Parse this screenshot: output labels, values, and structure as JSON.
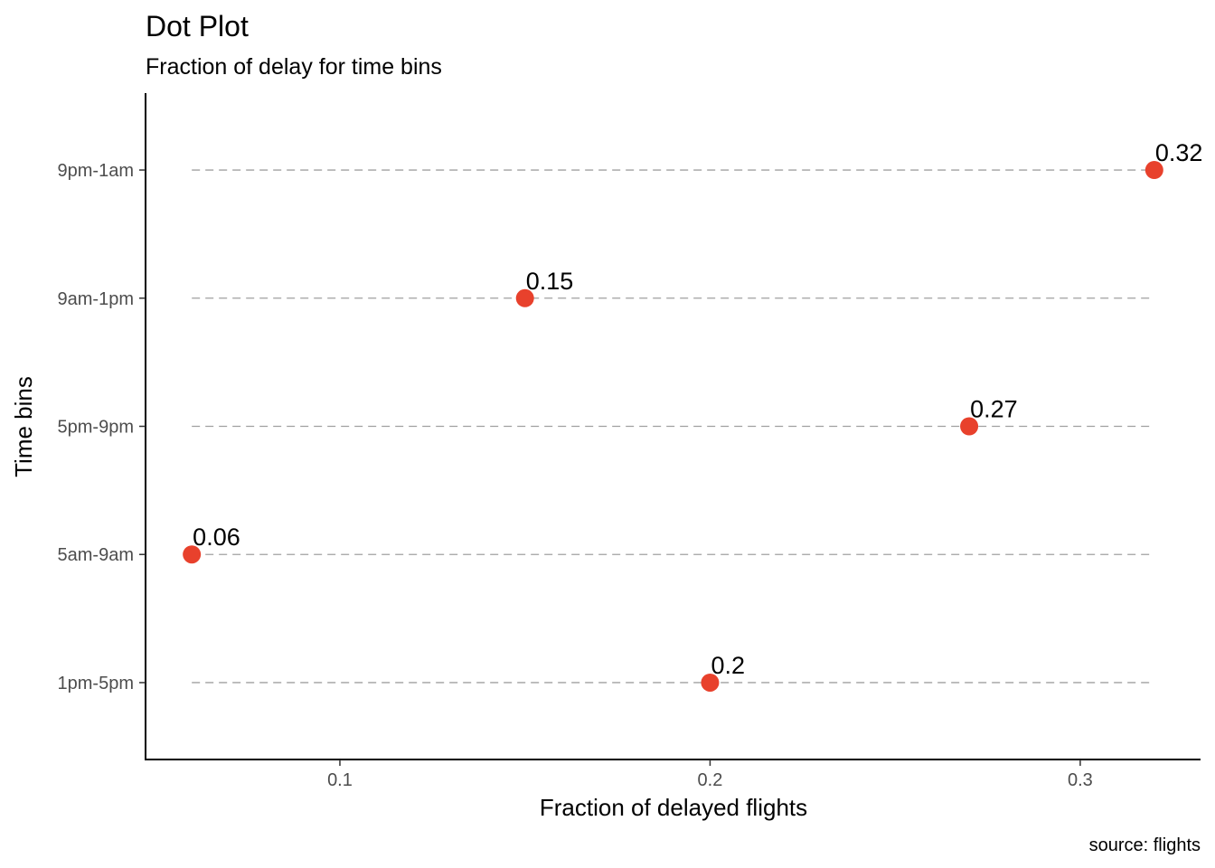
{
  "chart_data": {
    "type": "scatter",
    "title": "Dot Plot",
    "subtitle": "Fraction of delay for time bins",
    "xlabel": "Fraction of delayed flights",
    "ylabel": "Time bins",
    "caption": "source: flights",
    "categories": [
      "9pm-1am",
      "9am-1pm",
      "5pm-9pm",
      "5am-9am",
      "1pm-5pm"
    ],
    "values": [
      0.32,
      0.15,
      0.27,
      0.06,
      0.2
    ],
    "value_labels": [
      "0.32",
      "0.15",
      "0.27",
      "0.06",
      "0.2"
    ],
    "xlim": [
      0.0475,
      0.3325
    ],
    "xticks": [
      0.1,
      0.2,
      0.3
    ],
    "xtick_labels": [
      "0.1",
      "0.2",
      "0.3"
    ],
    "segment_range": [
      0.06,
      0.32
    ],
    "grid": false,
    "legend": "none",
    "point_color": "#e8412c",
    "segment_color": "#a0a0a0"
  }
}
